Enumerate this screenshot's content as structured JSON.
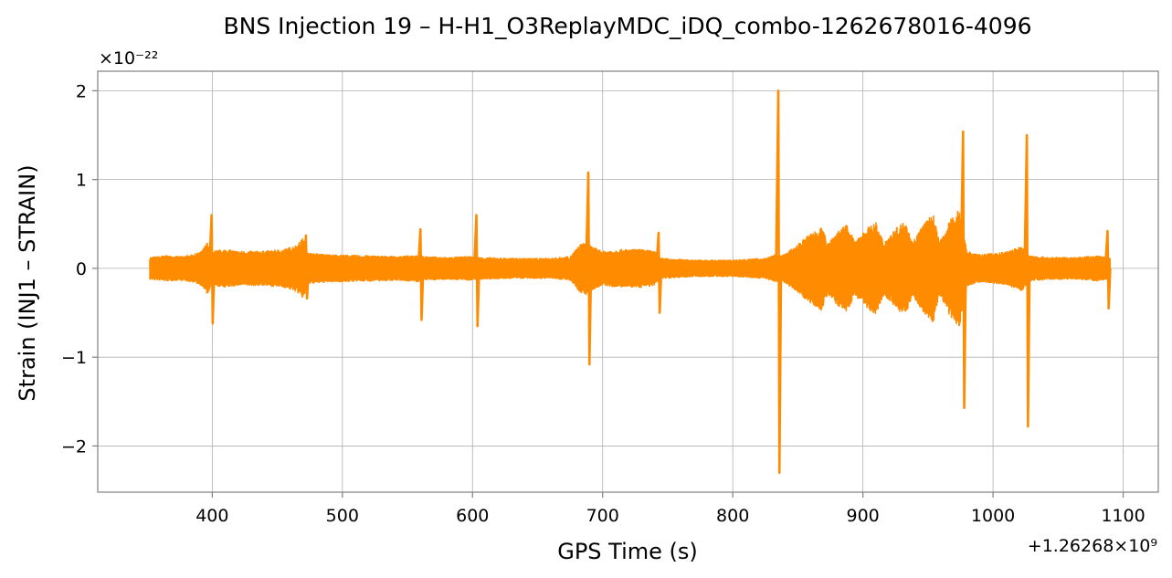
{
  "chart_data": {
    "type": "line",
    "title": "BNS Injection 19 – H-H1_O3ReplayMDC_iDQ_combo-1262678016-4096",
    "xlabel": "GPS Time (s)",
    "ylabel": "Strain (INJ1 – STRAIN)",
    "x_offset_label": "+1.26268×10⁹",
    "y_scale_label": "×10⁻²²",
    "xlim": [
      312,
      1127
    ],
    "ylim": [
      -2.52,
      2.22
    ],
    "x_ticks": [
      400,
      500,
      600,
      700,
      800,
      900,
      1000,
      1100
    ],
    "x_tick_labels": [
      "400",
      "500",
      "600",
      "700",
      "800",
      "900",
      "1000",
      "1100"
    ],
    "y_ticks": [
      -2,
      -1,
      0,
      1,
      2
    ],
    "y_tick_labels": [
      "−2",
      "−1",
      "0",
      "1",
      "2"
    ],
    "grid": true,
    "line_color": "#ff8c00",
    "x_range": [
      352,
      1090
    ],
    "envelope": [
      [
        352,
        0.13
      ],
      [
        365,
        0.15
      ],
      [
        375,
        0.14
      ],
      [
        385,
        0.16
      ],
      [
        392,
        0.2
      ],
      [
        396,
        0.3
      ],
      [
        400,
        0.2
      ],
      [
        410,
        0.22
      ],
      [
        420,
        0.2
      ],
      [
        440,
        0.2
      ],
      [
        455,
        0.22
      ],
      [
        465,
        0.27
      ],
      [
        470,
        0.35
      ],
      [
        474,
        0.18
      ],
      [
        490,
        0.16
      ],
      [
        520,
        0.15
      ],
      [
        545,
        0.14
      ],
      [
        558,
        0.16
      ],
      [
        562,
        0.14
      ],
      [
        580,
        0.13
      ],
      [
        598,
        0.14
      ],
      [
        605,
        0.13
      ],
      [
        630,
        0.12
      ],
      [
        660,
        0.12
      ],
      [
        675,
        0.14
      ],
      [
        683,
        0.28
      ],
      [
        688,
        0.3
      ],
      [
        692,
        0.25
      ],
      [
        700,
        0.2
      ],
      [
        715,
        0.22
      ],
      [
        730,
        0.22
      ],
      [
        740,
        0.2
      ],
      [
        745,
        0.12
      ],
      [
        770,
        0.1
      ],
      [
        800,
        0.1
      ],
      [
        825,
        0.12
      ],
      [
        833,
        0.16
      ],
      [
        838,
        0.15
      ],
      [
        848,
        0.25
      ],
      [
        858,
        0.38
      ],
      [
        868,
        0.48
      ],
      [
        873,
        0.3
      ],
      [
        880,
        0.42
      ],
      [
        888,
        0.5
      ],
      [
        894,
        0.3
      ],
      [
        902,
        0.45
      ],
      [
        910,
        0.52
      ],
      [
        916,
        0.3
      ],
      [
        925,
        0.45
      ],
      [
        933,
        0.55
      ],
      [
        938,
        0.3
      ],
      [
        946,
        0.5
      ],
      [
        954,
        0.62
      ],
      [
        959,
        0.3
      ],
      [
        967,
        0.55
      ],
      [
        974,
        0.68
      ],
      [
        980,
        0.2
      ],
      [
        990,
        0.16
      ],
      [
        1010,
        0.19
      ],
      [
        1022,
        0.26
      ],
      [
        1028,
        0.15
      ],
      [
        1045,
        0.13
      ],
      [
        1065,
        0.13
      ],
      [
        1080,
        0.15
      ],
      [
        1090,
        0.12
      ]
    ],
    "spikes": [
      {
        "x": 399.5,
        "up": 0.6,
        "down": -0.62
      },
      {
        "x": 472,
        "up": 0.37,
        "down": -0.34
      },
      {
        "x": 560,
        "up": 0.44,
        "down": -0.58
      },
      {
        "x": 603,
        "up": 0.6,
        "down": -0.65
      },
      {
        "x": 689,
        "up": 1.08,
        "down": -1.08
      },
      {
        "x": 743,
        "up": 0.4,
        "down": -0.5
      },
      {
        "x": 835,
        "up": 2.0,
        "down": -2.3
      },
      {
        "x": 977,
        "up": 1.54,
        "down": -1.57
      },
      {
        "x": 1026,
        "up": 1.5,
        "down": -1.78
      },
      {
        "x": 1088,
        "up": 0.42,
        "down": -0.45
      }
    ]
  }
}
